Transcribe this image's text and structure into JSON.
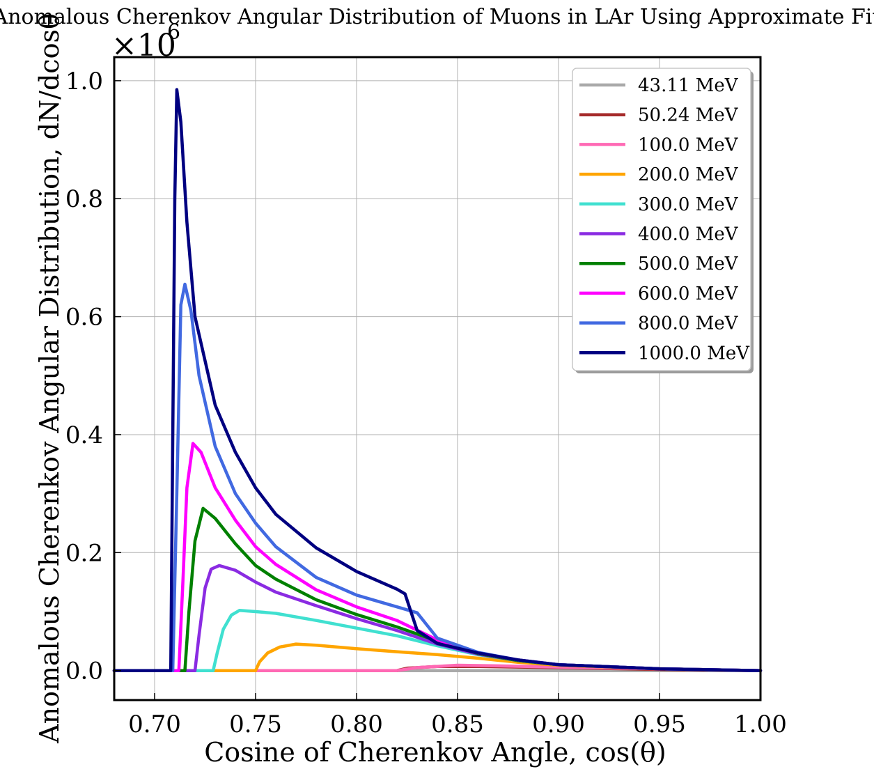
{
  "chart_data": {
    "type": "line",
    "title": "Anomalous Cherenkov Angular Distribution of Muons in LAr Using Approximate Fit",
    "xlabel": "Cosine of Cherenkov Angle, cos(θ)",
    "ylabel": "Anomalous Cherenkov Angular Distribution, dN/dcosθ",
    "y_multiplier": "×10",
    "y_multiplier_exp": "6",
    "xlim": [
      0.68,
      1.0
    ],
    "ylim": [
      -0.05,
      1.04
    ],
    "xticks": [
      "0.70",
      "0.75",
      "0.80",
      "0.85",
      "0.90",
      "0.95",
      "1.00"
    ],
    "yticks": [
      "0.0",
      "0.2",
      "0.4",
      "0.6",
      "0.8",
      "1.0"
    ],
    "grid": true,
    "legend_position": "top-right",
    "series": [
      {
        "name": "43.11 MeV",
        "color": "#a9a9a9",
        "x": [
          0.68,
          1.0
        ],
        "y": [
          0.0,
          0.0
        ]
      },
      {
        "name": "50.24 MeV",
        "color": "#a52a2a",
        "x": [
          0.68,
          0.82,
          0.825,
          0.84,
          0.86,
          0.88,
          0.9,
          0.95,
          1.0
        ],
        "y": [
          0.0,
          0.0,
          0.004,
          0.007,
          0.007,
          0.006,
          0.005,
          0.002,
          0.0
        ]
      },
      {
        "name": "100.0 MeV",
        "color": "#ff69b4",
        "x": [
          0.68,
          0.82,
          0.83,
          0.85,
          0.87,
          0.9,
          0.95,
          1.0
        ],
        "y": [
          0.0,
          0.0,
          0.005,
          0.009,
          0.008,
          0.006,
          0.003,
          0.0
        ]
      },
      {
        "name": "200.0 MeV",
        "color": "#ffa500",
        "x": [
          0.68,
          0.75,
          0.752,
          0.756,
          0.762,
          0.77,
          0.78,
          0.8,
          0.82,
          0.84,
          0.86,
          0.88,
          0.9,
          0.95,
          1.0
        ],
        "y": [
          0.0,
          0.0,
          0.015,
          0.03,
          0.04,
          0.045,
          0.043,
          0.037,
          0.032,
          0.027,
          0.021,
          0.014,
          0.009,
          0.003,
          0.0
        ]
      },
      {
        "name": "300.0 MeV",
        "color": "#40e0d0",
        "x": [
          0.68,
          0.729,
          0.731,
          0.734,
          0.738,
          0.742,
          0.75,
          0.76,
          0.78,
          0.8,
          0.82,
          0.84,
          0.86,
          0.88,
          0.9,
          0.95,
          1.0
        ],
        "y": [
          0.0,
          0.0,
          0.03,
          0.07,
          0.094,
          0.102,
          0.1,
          0.097,
          0.085,
          0.072,
          0.059,
          0.042,
          0.027,
          0.017,
          0.01,
          0.003,
          0.0
        ]
      },
      {
        "name": "400.0 MeV",
        "color": "#8a2be2",
        "x": [
          0.68,
          0.72,
          0.722,
          0.725,
          0.728,
          0.732,
          0.74,
          0.75,
          0.76,
          0.78,
          0.8,
          0.82,
          0.84,
          0.86,
          0.88,
          0.9,
          0.95,
          1.0
        ],
        "y": [
          0.0,
          0.0,
          0.06,
          0.14,
          0.172,
          0.178,
          0.17,
          0.15,
          0.133,
          0.11,
          0.088,
          0.068,
          0.045,
          0.028,
          0.017,
          0.01,
          0.003,
          0.0
        ]
      },
      {
        "name": "500.0 MeV",
        "color": "#008000",
        "x": [
          0.68,
          0.715,
          0.717,
          0.72,
          0.724,
          0.73,
          0.74,
          0.75,
          0.76,
          0.78,
          0.8,
          0.82,
          0.84,
          0.86,
          0.88,
          0.9,
          0.95,
          1.0
        ],
        "y": [
          0.0,
          0.0,
          0.1,
          0.22,
          0.275,
          0.258,
          0.215,
          0.178,
          0.155,
          0.12,
          0.095,
          0.074,
          0.05,
          0.029,
          0.017,
          0.01,
          0.003,
          0.0
        ]
      },
      {
        "name": "600.0 MeV",
        "color": "#ff00ff",
        "x": [
          0.68,
          0.712,
          0.714,
          0.716,
          0.719,
          0.723,
          0.73,
          0.74,
          0.75,
          0.76,
          0.78,
          0.8,
          0.82,
          0.84,
          0.86,
          0.88,
          0.9,
          0.95,
          1.0
        ],
        "y": [
          0.0,
          0.0,
          0.15,
          0.31,
          0.385,
          0.37,
          0.31,
          0.255,
          0.21,
          0.18,
          0.137,
          0.108,
          0.085,
          0.052,
          0.03,
          0.018,
          0.01,
          0.003,
          0.0
        ]
      },
      {
        "name": "800.0 MeV",
        "color": "#4169e1",
        "x": [
          0.68,
          0.709,
          0.711,
          0.713,
          0.715,
          0.718,
          0.722,
          0.73,
          0.74,
          0.75,
          0.76,
          0.78,
          0.8,
          0.82,
          0.83,
          0.84,
          0.86,
          0.88,
          0.9,
          0.95,
          1.0
        ],
        "y": [
          0.0,
          0.0,
          0.3,
          0.62,
          0.655,
          0.61,
          0.5,
          0.38,
          0.3,
          0.25,
          0.21,
          0.158,
          0.128,
          0.108,
          0.098,
          0.055,
          0.031,
          0.018,
          0.01,
          0.003,
          0.0
        ]
      },
      {
        "name": "1000.0 MeV",
        "color": "#000080",
        "x": [
          0.68,
          0.708,
          0.709,
          0.71,
          0.711,
          0.713,
          0.716,
          0.72,
          0.73,
          0.74,
          0.75,
          0.76,
          0.78,
          0.8,
          0.82,
          0.824,
          0.83,
          0.84,
          0.86,
          0.88,
          0.9,
          0.95,
          1.0
        ],
        "y": [
          0.0,
          0.0,
          0.4,
          0.8,
          0.985,
          0.93,
          0.76,
          0.6,
          0.45,
          0.37,
          0.31,
          0.265,
          0.208,
          0.168,
          0.138,
          0.13,
          0.068,
          0.046,
          0.03,
          0.018,
          0.01,
          0.003,
          0.0
        ]
      }
    ]
  }
}
